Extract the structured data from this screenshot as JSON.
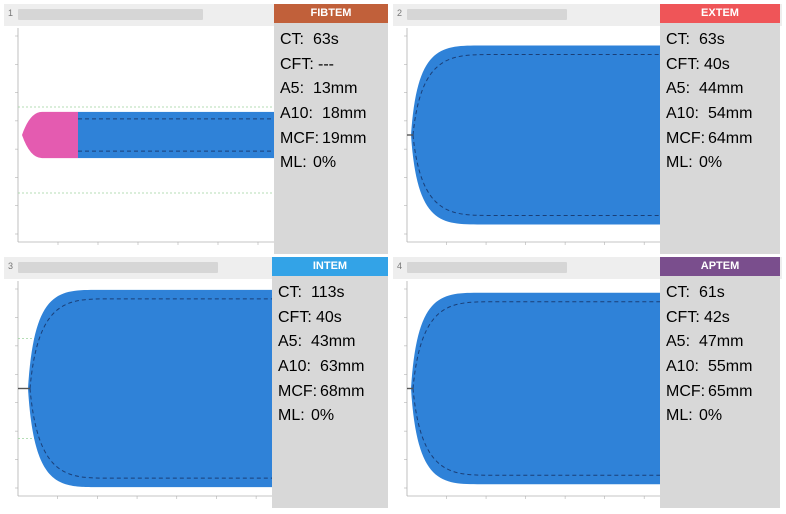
{
  "panels": [
    {
      "number": "1",
      "test": {
        "label": "FIBTEM",
        "color": "#c1603a"
      },
      "trace": {
        "color": "#2f82d8",
        "early_color": "#e45bb0",
        "amplitude_fraction": 0.16
      },
      "params": [
        {
          "key": "CT:",
          "value": "63s"
        },
        {
          "key": "CFT:",
          "value": "---"
        },
        {
          "key": "A5:",
          "value": "13mm"
        },
        {
          "key": "A10:",
          "value": "18mm"
        },
        {
          "key": "MCF:",
          "value": "19mm"
        },
        {
          "key": "ML:",
          "value": "0%"
        }
      ]
    },
    {
      "number": "2",
      "test": {
        "label": "EXTEM",
        "color": "#ef5558"
      },
      "trace": {
        "color": "#2f82d8",
        "amplitude_fraction": 0.62
      },
      "params": [
        {
          "key": "CT:",
          "value": "63s"
        },
        {
          "key": "CFT:",
          "value": "40s"
        },
        {
          "key": "A5:",
          "value": "44mm"
        },
        {
          "key": "A10:",
          "value": "54mm"
        },
        {
          "key": "MCF:",
          "value": "64mm"
        },
        {
          "key": "ML:",
          "value": "0%"
        }
      ]
    },
    {
      "number": "3",
      "test": {
        "label": "INTEM",
        "color": "#33a3e7"
      },
      "trace": {
        "color": "#2f82d8",
        "amplitude_fraction": 0.68
      },
      "params": [
        {
          "key": "CT:",
          "value": "113s"
        },
        {
          "key": "CFT:",
          "value": "40s"
        },
        {
          "key": "A5:",
          "value": "43mm"
        },
        {
          "key": "A10:",
          "value": "63mm"
        },
        {
          "key": "MCF:",
          "value": "68mm"
        },
        {
          "key": "ML:",
          "value": "0%"
        }
      ]
    },
    {
      "number": "4",
      "test": {
        "label": "APTEM",
        "color": "#7a4e8d"
      },
      "trace": {
        "color": "#2f82d8",
        "amplitude_fraction": 0.66
      },
      "params": [
        {
          "key": "CT:",
          "value": "61s"
        },
        {
          "key": "CFT:",
          "value": "42s"
        },
        {
          "key": "A5:",
          "value": "47mm"
        },
        {
          "key": "A10:",
          "value": "55mm"
        },
        {
          "key": "MCF:",
          "value": "65mm"
        },
        {
          "key": "ML:",
          "value": "0%"
        }
      ]
    }
  ]
}
